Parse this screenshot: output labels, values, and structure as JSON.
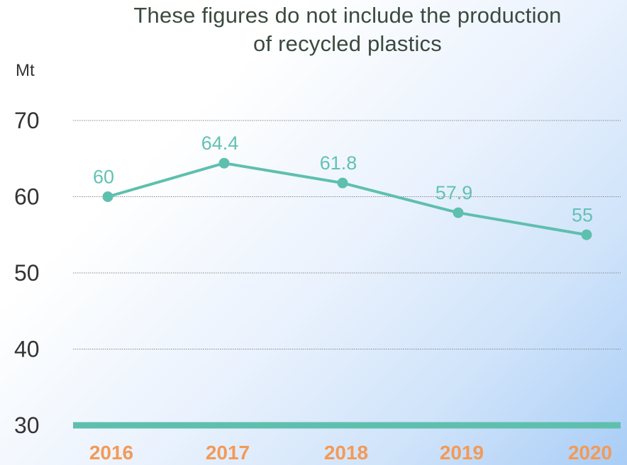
{
  "chart_data": {
    "type": "line",
    "title": "These figures do not include the production\nof recycled plastics",
    "ylabel": "Mt",
    "xlabel": "",
    "categories": [
      "2016",
      "2017",
      "2018",
      "2019",
      "2020"
    ],
    "values": [
      60,
      64.4,
      61.8,
      57.9,
      55
    ],
    "data_labels": [
      "60",
      "64.4",
      "61.8",
      "57.9",
      "55"
    ],
    "ylim": [
      30,
      70
    ],
    "yticks": [
      "30",
      "40",
      "50",
      "60",
      "70"
    ],
    "grid": true,
    "legend": "none",
    "colors": {
      "line": "#5fbfae",
      "data_label": "#62c2b3",
      "x_tick": "#f39a57",
      "axis_text": "#333333",
      "gridline": "#888888"
    }
  }
}
